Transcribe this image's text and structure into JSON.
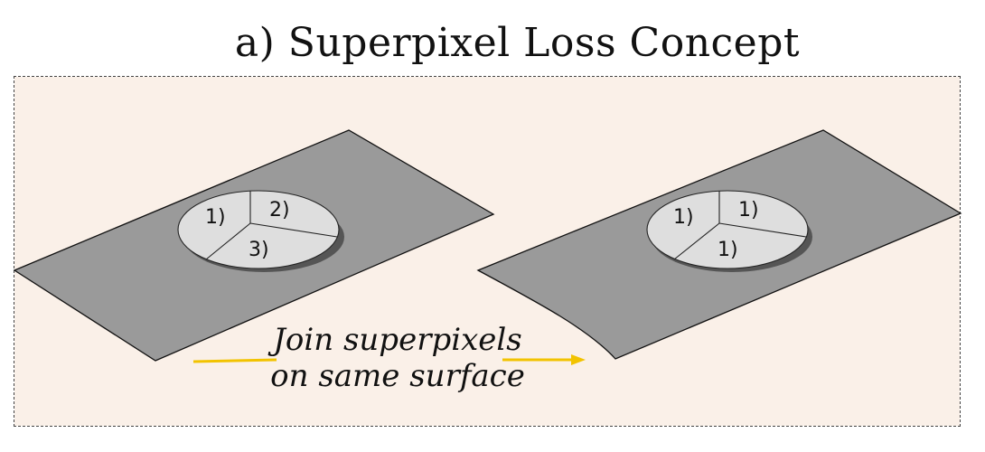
{
  "title": "a) Superpixel Loss Concept",
  "colors": {
    "panel_background": "#faf0e8",
    "surface": "#9a9a9a",
    "disc_top": "#dedede",
    "disc_shadow": "#555555",
    "arrow": "#f2c300"
  },
  "left_disc": {
    "segments": [
      "1)",
      "2)",
      "3)"
    ]
  },
  "right_disc": {
    "segments": [
      "1)",
      "1)",
      "1)"
    ]
  },
  "caption": {
    "line1": "Join superpixels",
    "line2": "on same surface"
  }
}
